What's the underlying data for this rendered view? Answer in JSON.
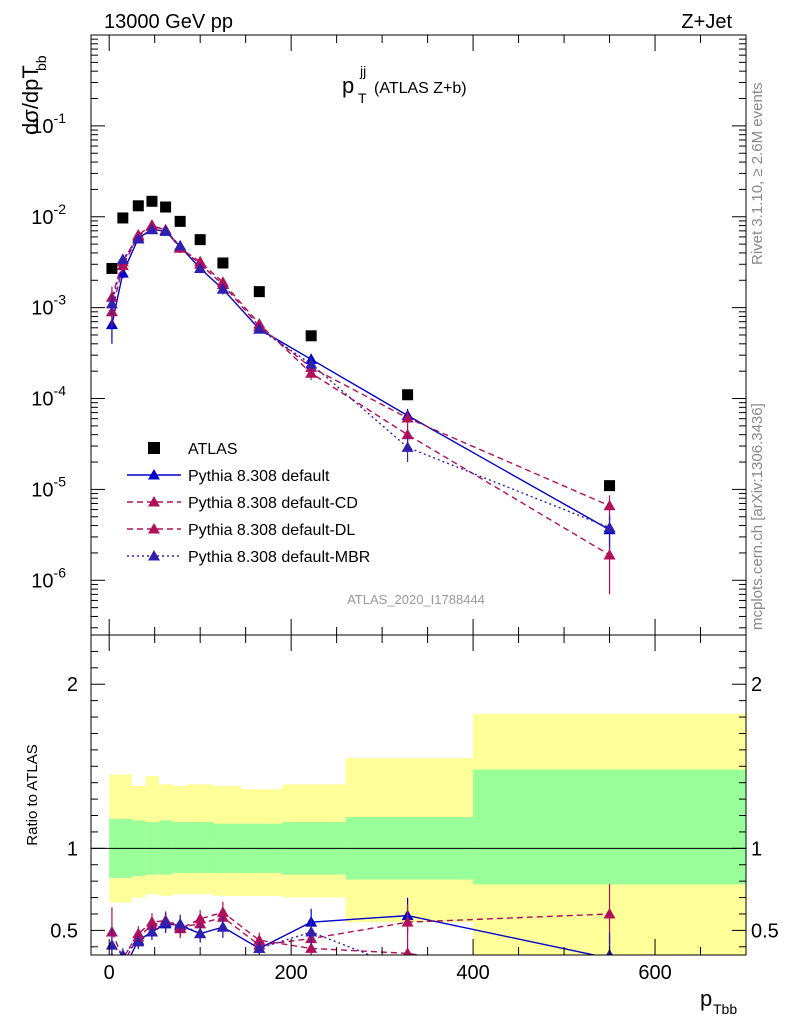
{
  "header": {
    "left": "13000 GeV pp",
    "right": "Z+Jet"
  },
  "plot_title": {
    "main": "p",
    "sup": "jj",
    "sub": "T",
    "rest": "(ATLAS Z+b)"
  },
  "y_title": {
    "main": "dσ/dpT",
    "sub": "bb"
  },
  "x_title": {
    "main": "p",
    "sub": "Tbb"
  },
  "ratio_title": "Ratio to ATLAS",
  "side_text_top": "Rivet 3.1.10, ≥ 2.6M events",
  "side_text_bottom": "mcplots.cern.ch [arXiv:1306.3436]",
  "analysis_label": "ATLAS_2020_I1788444",
  "colors": {
    "data": "#000000",
    "default": "#0000cc",
    "cd": "#b0105a",
    "dl": "#b0105a",
    "mbr": "#3020b0",
    "band_inner": "#99ff99",
    "band_outer": "#ffff99"
  },
  "chart_data": {
    "type": "scatter",
    "x_axis": {
      "range": [
        -20,
        700
      ],
      "ticks": [
        0,
        200,
        400,
        600
      ],
      "tick_labels": [
        "0",
        "200",
        "400",
        "600"
      ]
    },
    "main_y_axis": {
      "scale": "log",
      "range": [
        2.5e-07,
        1.0
      ],
      "tick_labels": [
        "10^-1",
        "10^-2",
        "10^-3",
        "10^-4",
        "10^-5",
        "10^-6"
      ]
    },
    "ratio_y_axis": {
      "range": [
        0.35,
        2.3
      ],
      "tick_labels": [
        "0.5",
        "1",
        "2"
      ]
    },
    "x": [
      3,
      15,
      32,
      47,
      62,
      78,
      100,
      125,
      165,
      222,
      328,
      550
    ],
    "series": [
      {
        "name": "ATLAS",
        "y": [
          0.0027,
          0.0097,
          0.0132,
          0.0148,
          0.0128,
          0.0089,
          0.0056,
          0.0031,
          0.0015,
          0.00049,
          0.00011,
          1.1e-05
        ]
      },
      {
        "name": "Pythia 8.308 default",
        "style": "solid",
        "marker": "triangle",
        "y": [
          0.00065,
          0.0024,
          0.0058,
          0.0073,
          0.0069,
          0.0047,
          0.0027,
          0.0016,
          0.00058,
          0.00027,
          6.5e-05,
          3.6e-06
        ],
        "yerr": [
          0.00025,
          0.0003,
          0.0006,
          0.0007,
          0.0007,
          0.0005,
          0.0003,
          0.0002,
          6e-05,
          4e-05,
          1.2e-05,
          1.5e-06
        ],
        "ratio": [
          0.24,
          0.25,
          0.44,
          0.49,
          0.54,
          0.53,
          0.48,
          0.52,
          0.39,
          0.55,
          0.59,
          0.33
        ]
      },
      {
        "name": "Pythia 8.308 default-CD",
        "style": "dashed",
        "marker": "triangle",
        "y": [
          0.0013,
          0.0032,
          0.0063,
          0.0081,
          0.0071,
          0.0045,
          0.0032,
          0.0019,
          0.00066,
          0.00019,
          4e-05,
          1.9e-06
        ],
        "yerr": [
          0.0004,
          0.0004,
          0.0006,
          0.0008,
          0.0007,
          0.0005,
          0.0003,
          0.0002,
          7e-05,
          3e-05,
          1e-05,
          1.2e-06
        ],
        "ratio": [
          0.49,
          0.33,
          0.48,
          0.55,
          0.56,
          0.51,
          0.57,
          0.61,
          0.44,
          0.39,
          0.36,
          0.17
        ]
      },
      {
        "name": "Pythia 8.308 default-DL",
        "style": "dashed",
        "marker": "triangle",
        "y": [
          0.0009,
          0.0029,
          0.0061,
          0.0079,
          0.0072,
          0.0046,
          0.003,
          0.0018,
          0.00062,
          0.00022,
          6.1e-05,
          6.6e-06
        ],
        "yerr": [
          0.0003,
          0.0004,
          0.0006,
          0.0008,
          0.0007,
          0.0005,
          0.0003,
          0.0002,
          7e-05,
          4e-05,
          1.2e-05,
          2e-06
        ],
        "ratio": [
          0.33,
          0.3,
          0.46,
          0.53,
          0.56,
          0.52,
          0.54,
          0.58,
          0.41,
          0.45,
          0.55,
          0.6
        ]
      },
      {
        "name": "Pythia 8.308 default-MBR",
        "style": "dotted",
        "marker": "triangle",
        "y": [
          0.0011,
          0.0034,
          0.0057,
          0.0072,
          0.007,
          0.0048,
          0.0027,
          0.0016,
          0.00058,
          0.00024,
          2.9e-05,
          3.8e-06
        ],
        "yerr": [
          0.0003,
          0.0004,
          0.0006,
          0.0007,
          0.0007,
          0.0005,
          0.0003,
          0.0002,
          6e-05,
          4e-05,
          9e-06,
          1.5e-06
        ],
        "ratio": [
          0.41,
          0.35,
          0.43,
          0.49,
          0.55,
          0.54,
          0.48,
          0.52,
          0.39,
          0.49,
          0.26,
          0.35
        ]
      }
    ],
    "bands": {
      "edges": [
        0,
        10,
        25,
        40,
        55,
        70,
        85,
        115,
        145,
        190,
        260,
        400,
        700
      ],
      "inner_low": [
        0.82,
        0.82,
        0.83,
        0.84,
        0.84,
        0.85,
        0.85,
        0.85,
        0.85,
        0.84,
        0.81,
        0.78,
        0.65
      ],
      "inner_high": [
        1.18,
        1.18,
        1.17,
        1.16,
        1.17,
        1.16,
        1.16,
        1.15,
        1.15,
        1.16,
        1.19,
        1.48,
        1.48
      ],
      "outer_low": [
        0.67,
        0.67,
        0.7,
        0.72,
        0.71,
        0.72,
        0.72,
        0.71,
        0.71,
        0.7,
        0.55,
        0.35,
        0.35
      ],
      "outer_high": [
        1.45,
        1.45,
        1.38,
        1.44,
        1.39,
        1.38,
        1.39,
        1.38,
        1.36,
        1.39,
        1.55,
        1.82,
        1.82
      ]
    },
    "legend_position": "lower-left",
    "grid": false
  }
}
